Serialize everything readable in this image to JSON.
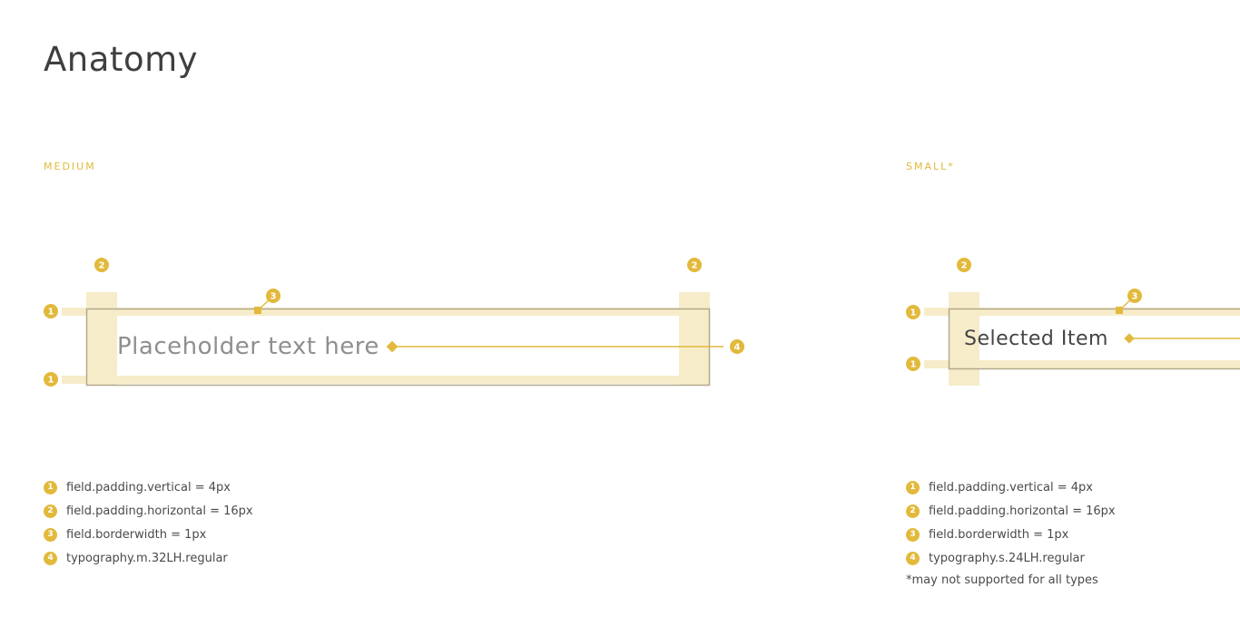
{
  "page": {
    "title": "Anatomy"
  },
  "colors": {
    "accent": "#e2b93b",
    "highlight": "#f7ecca",
    "border": "#b3a98c",
    "placeholder_text": "#8f8f8f",
    "value_text": "#444444"
  },
  "medium": {
    "label": "MEDIUM",
    "field_text": "Placeholder text here",
    "callouts": [
      "1",
      "1",
      "2",
      "2",
      "3",
      "4"
    ],
    "legend": [
      {
        "num": "1",
        "text": "field.padding.vertical = 4px"
      },
      {
        "num": "2",
        "text": "field.padding.horizontal = 16px"
      },
      {
        "num": "3",
        "text": "field.borderwidth = 1px"
      },
      {
        "num": "4",
        "text": "typography.m.32LH.regular"
      }
    ]
  },
  "small": {
    "label": "SMALL*",
    "field_text": "Selected Item",
    "callouts": [
      "1",
      "1",
      "2",
      "3"
    ],
    "legend": [
      {
        "num": "1",
        "text": "field.padding.vertical = 4px"
      },
      {
        "num": "2",
        "text": "field.padding.horizontal = 16px"
      },
      {
        "num": "3",
        "text": "field.borderwidth = 1px"
      },
      {
        "num": "4",
        "text": "typography.s.24LH.regular"
      }
    ],
    "footnote": "*may not supported for all types"
  }
}
